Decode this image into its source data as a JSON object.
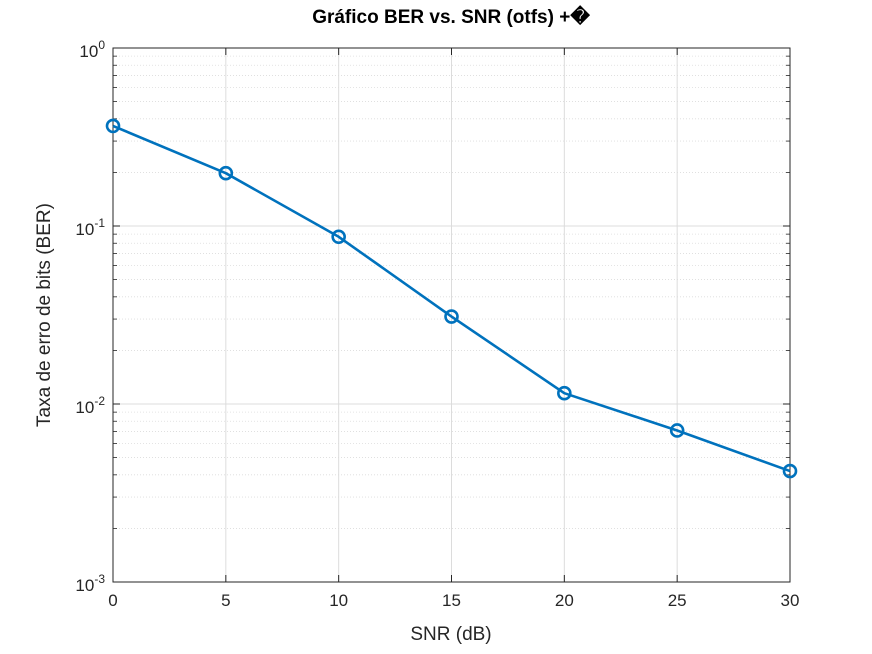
{
  "chart_data": {
    "type": "line",
    "title": "Gráfico BER vs. SNR (otfs) +�",
    "xlabel": "SNR (dB)",
    "ylabel": "Taxa de erro de bits (BER)",
    "x": [
      0,
      5,
      10,
      15,
      20,
      25,
      30
    ],
    "series": [
      {
        "values": [
          0.365,
          0.198,
          0.087,
          0.031,
          0.0115,
          0.0071,
          0.0042
        ],
        "color": "#0072BD",
        "marker": "circle"
      }
    ],
    "xlim": [
      0,
      30
    ],
    "ylim": [
      0.001,
      1
    ],
    "yscale": "log",
    "xticks": [
      "0",
      "5",
      "10",
      "15",
      "20",
      "25",
      "30"
    ],
    "yticks": [
      {
        "base": "10",
        "exp": "0"
      },
      {
        "base": "10",
        "exp": "-1"
      },
      {
        "base": "10",
        "exp": "-2"
      },
      {
        "base": "10",
        "exp": "-3"
      }
    ],
    "grid": true,
    "minor_grid": true
  }
}
